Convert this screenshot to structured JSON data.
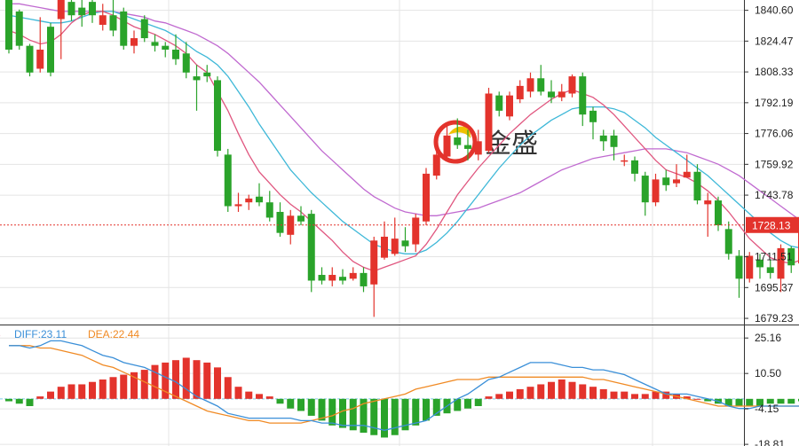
{
  "watermark": {
    "text": "金盛",
    "colors": {
      "ring": "#e3332c",
      "swoosh": "#f0c000"
    }
  },
  "chart_data": {
    "type": "candlestick",
    "price_axis": {
      "ticks": [
        1840.6,
        1824.47,
        1808.33,
        1792.19,
        1776.06,
        1759.92,
        1743.78,
        1711.51,
        1695.37,
        1679.23
      ],
      "range": [
        1676,
        1846
      ]
    },
    "last_price": {
      "value": 1728.13,
      "label": "1728.13",
      "color": "#e3332c"
    },
    "colors": {
      "up": "#e3332c",
      "down": "#2aa32a",
      "ma_fast": "#e0567f",
      "ma_mid": "#3eb8d8",
      "ma_slow": "#c06ad0",
      "diff": "#3a8fd8",
      "dea": "#f08a24",
      "grid": "#e4e4e4",
      "zero_line": "#7ec9e6"
    },
    "candles": [
      [
        1848,
        1820,
        1849,
        1818
      ],
      [
        1840,
        1822,
        1841,
        1820
      ],
      [
        1822,
        1808,
        1823,
        1806
      ],
      [
        1810,
        1820,
        1837,
        1808
      ],
      [
        1832,
        1808,
        1834,
        1806
      ],
      [
        1836,
        1846,
        1848,
        1815
      ],
      [
        1845,
        1838,
        1846,
        1835
      ],
      [
        1842,
        1838,
        1848,
        1832
      ],
      [
        1845,
        1838,
        1846,
        1834
      ],
      [
        1833,
        1838,
        1844,
        1830
      ],
      [
        1838,
        1830,
        1846,
        1827
      ],
      [
        1840,
        1822,
        1842,
        1820
      ],
      [
        1822,
        1826,
        1830,
        1818
      ],
      [
        1836,
        1826,
        1838,
        1824
      ],
      [
        1824,
        1822,
        1828,
        1819
      ],
      [
        1822,
        1820,
        1824,
        1816
      ],
      [
        1820,
        1815,
        1828,
        1812
      ],
      [
        1818,
        1808,
        1824,
        1805
      ],
      [
        1806,
        1804,
        1812,
        1788
      ],
      [
        1808,
        1806,
        1812,
        1803
      ],
      [
        1804,
        1767,
        1806,
        1764
      ],
      [
        1765,
        1738,
        1768,
        1735
      ],
      [
        1738,
        1739,
        1745,
        1735
      ],
      [
        1740,
        1742,
        1744,
        1736
      ],
      [
        1743,
        1740,
        1750,
        1738
      ],
      [
        1740,
        1732,
        1746,
        1730
      ],
      [
        1735,
        1724,
        1740,
        1722
      ],
      [
        1723,
        1733,
        1736,
        1718
      ],
      [
        1733,
        1730,
        1738,
        1728
      ],
      [
        1734,
        1699,
        1736,
        1693
      ],
      [
        1702,
        1699,
        1706,
        1697
      ],
      [
        1699,
        1702,
        1706,
        1696
      ],
      [
        1701,
        1699,
        1705,
        1697
      ],
      [
        1700,
        1703,
        1706,
        1699
      ],
      [
        1703,
        1696,
        1706,
        1693
      ],
      [
        1697,
        1720,
        1722,
        1680
      ],
      [
        1711,
        1722,
        1730,
        1710
      ],
      [
        1713,
        1721,
        1732,
        1712
      ],
      [
        1720,
        1717,
        1727,
        1714
      ],
      [
        1718,
        1732,
        1734,
        1714
      ],
      [
        1730,
        1755,
        1758,
        1728
      ],
      [
        1754,
        1765,
        1770,
        1752
      ],
      [
        1764,
        1775,
        1780,
        1763
      ],
      [
        1774,
        1770,
        1784,
        1768
      ],
      [
        1770,
        1768,
        1778,
        1762
      ],
      [
        1765,
        1772,
        1778,
        1762
      ],
      [
        1767,
        1797,
        1800,
        1766
      ],
      [
        1796,
        1788,
        1798,
        1785
      ],
      [
        1785,
        1796,
        1798,
        1783
      ],
      [
        1794,
        1801,
        1804,
        1792
      ],
      [
        1798,
        1805,
        1808,
        1795
      ],
      [
        1805,
        1798,
        1812,
        1796
      ],
      [
        1798,
        1795,
        1804,
        1792
      ],
      [
        1795,
        1798,
        1802,
        1793
      ],
      [
        1797,
        1806,
        1807,
        1795
      ],
      [
        1806,
        1786,
        1808,
        1780
      ],
      [
        1788,
        1782,
        1790,
        1773
      ],
      [
        1775,
        1772,
        1778,
        1767
      ],
      [
        1775,
        1769,
        1778,
        1762
      ],
      [
        1762,
        1762,
        1765,
        1759
      ],
      [
        1762,
        1755,
        1764,
        1751
      ],
      [
        1754,
        1740,
        1756,
        1733
      ],
      [
        1740,
        1752,
        1755,
        1738
      ],
      [
        1753,
        1749,
        1757,
        1746
      ],
      [
        1750,
        1752,
        1760,
        1748
      ],
      [
        1753,
        1756,
        1765,
        1753
      ],
      [
        1756,
        1741,
        1760,
        1739
      ],
      [
        1739,
        1741,
        1745,
        1722
      ],
      [
        1741,
        1728,
        1743,
        1725
      ],
      [
        1726,
        1713,
        1730,
        1710
      ],
      [
        1712,
        1700,
        1715,
        1690
      ],
      [
        1700,
        1712,
        1714,
        1698
      ],
      [
        1710,
        1706,
        1713,
        1700
      ],
      [
        1706,
        1703,
        1710,
        1700
      ],
      [
        1700,
        1716,
        1718,
        1693
      ],
      [
        1716,
        1707,
        1717,
        1703
      ],
      [
        1708,
        1728,
        1729,
        1707
      ]
    ],
    "ma_fast": [
      1830,
      1828,
      1825,
      1823,
      1824,
      1828,
      1834,
      1838,
      1840,
      1840,
      1838,
      1835,
      1832,
      1830,
      1828,
      1825,
      1822,
      1818,
      1812,
      1808,
      1798,
      1788,
      1776,
      1765,
      1756,
      1750,
      1744,
      1739,
      1735,
      1730,
      1725,
      1720,
      1714,
      1709,
      1706,
      1704,
      1706,
      1708,
      1710,
      1712,
      1718,
      1726,
      1735,
      1744,
      1751,
      1758,
      1764,
      1770,
      1776,
      1781,
      1786,
      1790,
      1794,
      1797,
      1799,
      1797,
      1795,
      1791,
      1786,
      1780,
      1774,
      1768,
      1762,
      1757,
      1755,
      1753,
      1750,
      1746,
      1741,
      1735,
      1728,
      1721,
      1716,
      1711,
      1709,
      1708,
      1710
    ],
    "ma_mid": [
      1838,
      1837,
      1836,
      1835,
      1834,
      1834,
      1835,
      1837,
      1839,
      1840,
      1840,
      1838,
      1836,
      1834,
      1832,
      1830,
      1827,
      1823,
      1819,
      1816,
      1812,
      1806,
      1798,
      1790,
      1781,
      1773,
      1765,
      1757,
      1751,
      1745,
      1740,
      1735,
      1730,
      1726,
      1722,
      1718,
      1716,
      1714,
      1713,
      1713,
      1715,
      1719,
      1724,
      1730,
      1737,
      1744,
      1751,
      1758,
      1764,
      1770,
      1775,
      1779,
      1783,
      1786,
      1789,
      1790,
      1790,
      1790,
      1789,
      1787,
      1783,
      1779,
      1774,
      1770,
      1766,
      1762,
      1758,
      1754,
      1749,
      1744,
      1739,
      1734,
      1729,
      1724,
      1720,
      1717,
      1716
    ],
    "ma_slow": [
      1844,
      1844,
      1843,
      1842,
      1841,
      1840,
      1840,
      1840,
      1840,
      1840,
      1840,
      1839,
      1838,
      1837,
      1835,
      1834,
      1832,
      1830,
      1828,
      1825,
      1822,
      1818,
      1813,
      1808,
      1803,
      1797,
      1791,
      1785,
      1779,
      1773,
      1767,
      1762,
      1757,
      1752,
      1747,
      1743,
      1740,
      1737,
      1735,
      1734,
      1733,
      1733,
      1734,
      1735,
      1736,
      1737,
      1739,
      1741,
      1743,
      1745,
      1748,
      1751,
      1754,
      1757,
      1759,
      1761,
      1763,
      1764,
      1765,
      1766,
      1767,
      1768,
      1768,
      1768,
      1767,
      1766,
      1764,
      1762,
      1760,
      1757,
      1754,
      1750,
      1746,
      1742,
      1738,
      1734,
      1730
    ],
    "macd": {
      "labels": {
        "diff": "DIFF:23.11",
        "dea": "DEA:22.44",
        "clipped": "3"
      },
      "axis_ticks": [
        25.16,
        10.5,
        -4.15,
        -18.81
      ],
      "range": [
        -19.5,
        30
      ],
      "hist": [
        -1,
        -2,
        -3,
        1,
        3,
        5,
        6,
        6,
        7,
        8,
        9,
        10,
        11,
        12,
        14,
        15,
        16,
        17,
        16,
        15,
        13,
        9,
        5,
        3,
        2,
        1,
        -2,
        -4,
        -5,
        -7,
        -9,
        -11,
        -12,
        -13,
        -14,
        -15,
        -16,
        -15,
        -13,
        -11,
        -9,
        -7,
        -6,
        -5,
        -4,
        -3,
        1,
        2,
        3,
        4,
        5,
        6,
        7,
        8,
        7,
        6,
        5,
        4,
        3,
        3,
        2,
        2,
        3,
        3,
        2,
        1,
        0,
        -1,
        -2,
        -3,
        -3,
        -3,
        -3,
        -2,
        -2,
        -2,
        -1
      ],
      "diff": [
        22,
        22,
        21,
        22,
        24,
        24,
        23,
        22,
        20,
        18,
        17,
        15,
        14,
        13,
        11,
        9,
        7,
        4,
        1,
        -1,
        -3,
        -6,
        -7,
        -8,
        -8,
        -8,
        -8,
        -8,
        -9,
        -9,
        -10,
        -10,
        -11,
        -11,
        -11,
        -12,
        -13,
        -12,
        -11,
        -10,
        -9,
        -6,
        -3,
        0,
        2,
        5,
        8,
        9,
        11,
        13,
        15,
        15,
        15,
        14,
        13,
        13,
        12,
        12,
        11,
        10,
        8,
        6,
        4,
        2,
        2,
        2,
        1,
        0,
        -1,
        -3,
        -4,
        -4,
        -3,
        -3,
        -3,
        -3,
        -3
      ],
      "dea": [
        22,
        22,
        22,
        21,
        21,
        20,
        19,
        18,
        16,
        14,
        13,
        11,
        9,
        7,
        5,
        3,
        1,
        -1,
        -3,
        -5,
        -6,
        -7,
        -8,
        -9,
        -9,
        -10,
        -10,
        -10,
        -10,
        -9,
        -8,
        -7,
        -5,
        -4,
        -2,
        -1,
        0,
        1,
        2,
        4,
        5,
        6,
        7,
        8,
        8,
        8,
        9,
        9,
        9,
        9,
        9,
        9,
        9,
        9,
        9,
        9,
        8,
        8,
        7,
        6,
        5,
        4,
        3,
        2,
        1,
        0,
        -1,
        -2,
        -3,
        -3,
        -3,
        -3,
        -3,
        -3,
        -3,
        -3,
        -3
      ]
    }
  }
}
